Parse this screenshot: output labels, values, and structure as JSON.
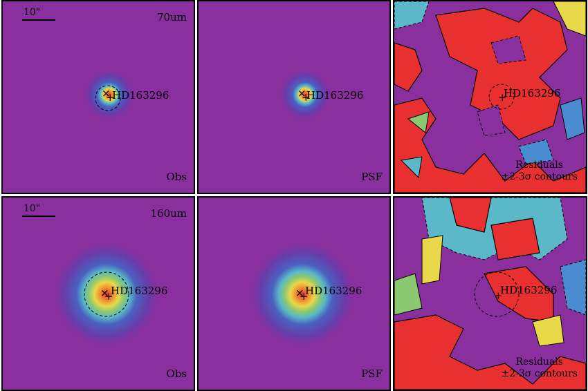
{
  "panels": [
    {
      "band": "70um",
      "target": "HD163296",
      "kind": "Obs",
      "scale": "10\""
    },
    {
      "target": "HD163296",
      "kind": "PSF"
    },
    {
      "target": "HD163296",
      "residual_line1": "Residuals",
      "residual_line2": "±2-3σ contours"
    },
    {
      "band": "160um",
      "target": "HD163296",
      "kind": "Obs",
      "scale": "10\""
    },
    {
      "target": "HD163296",
      "kind": "PSF"
    },
    {
      "target": "HD163296",
      "residual_line1": "Residuals",
      "residual_line2": "±2-3σ contours"
    }
  ],
  "colors": {
    "background_purple": "#8a2f9e",
    "dark_blue": "#3a40a8",
    "blue": "#4a8cd0",
    "cyan": "#5ab8c8",
    "green": "#8cc870",
    "yellow": "#e8d84a",
    "orange": "#f09030",
    "red": "#e83030"
  }
}
